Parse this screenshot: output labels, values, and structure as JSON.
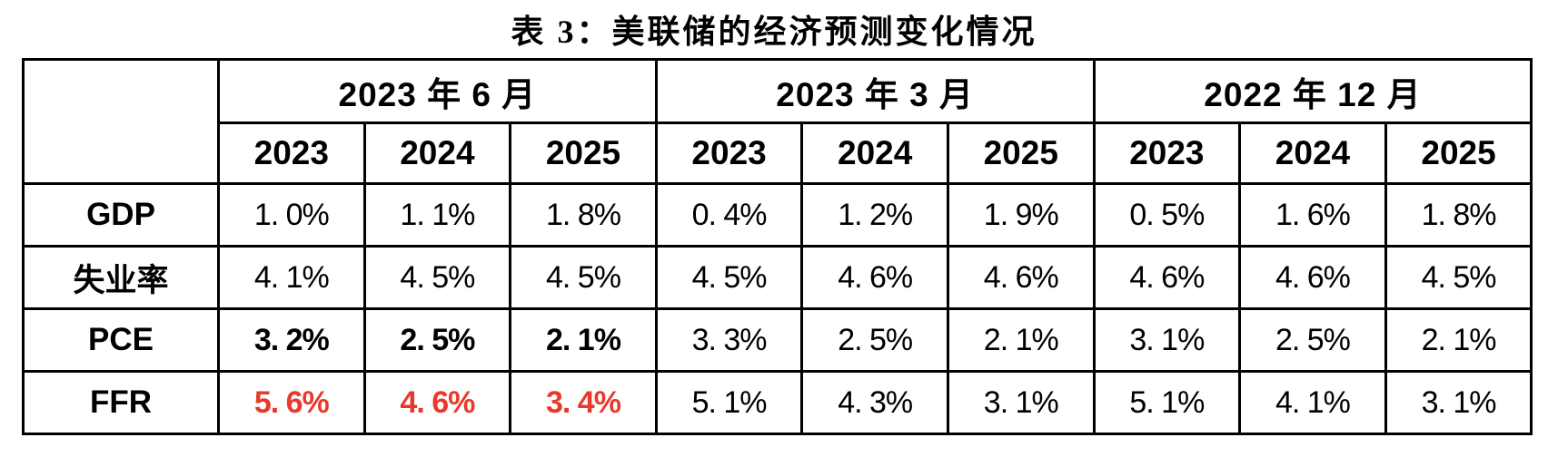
{
  "title": "表 3：美联储的经济预测变化情况",
  "colors": {
    "highlight_red": "#e8392b",
    "text": "#000000",
    "border": "#000000",
    "background": "#ffffff"
  },
  "table": {
    "groups": [
      {
        "label": "2023 年 6 月",
        "years": [
          "2023",
          "2024",
          "2025"
        ]
      },
      {
        "label": "2023 年 3 月",
        "years": [
          "2023",
          "2024",
          "2025"
        ]
      },
      {
        "label": "2022 年 12 月",
        "years": [
          "2023",
          "2024",
          "2025"
        ]
      }
    ],
    "rows": [
      {
        "label": "GDP",
        "values": [
          "1. 0%",
          "1. 1%",
          "1. 8%",
          "0. 4%",
          "1. 2%",
          "1. 9%",
          "0. 5%",
          "1. 6%",
          "1. 8%"
        ]
      },
      {
        "label": "失业率",
        "values": [
          "4. 1%",
          "4. 5%",
          "4. 5%",
          "4. 5%",
          "4. 6%",
          "4. 6%",
          "4. 6%",
          "4. 6%",
          "4. 5%"
        ]
      },
      {
        "label": "PCE",
        "values": [
          "3. 2%",
          "2. 5%",
          "2. 1%",
          "3. 3%",
          "2. 5%",
          "2. 1%",
          "3. 1%",
          "2. 5%",
          "2. 1%"
        ]
      },
      {
        "label": "FFR",
        "values": [
          "5. 6%",
          "4. 6%",
          "3. 4%",
          "5. 1%",
          "4. 3%",
          "3. 1%",
          "5. 1%",
          "4. 1%",
          "3. 1%"
        ]
      }
    ]
  }
}
